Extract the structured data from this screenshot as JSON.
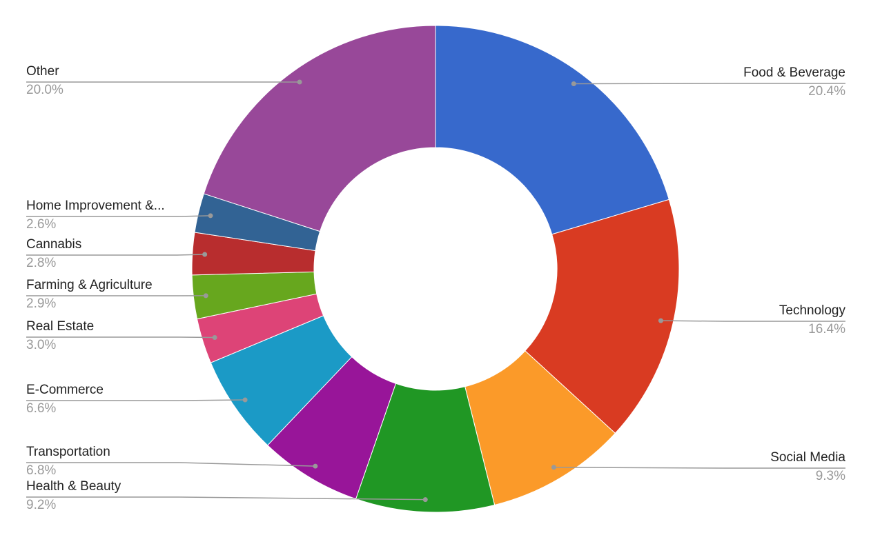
{
  "chart_data": {
    "type": "donut",
    "categories": [
      "Food & Beverage",
      "Technology",
      "Social Media",
      "Health & Beauty",
      "Transportation",
      "E-Commerce",
      "Real Estate",
      "Farming & Agriculture",
      "Cannabis",
      "Home Improvement &...",
      "Other"
    ],
    "values": [
      20.4,
      16.4,
      9.3,
      9.2,
      6.8,
      6.6,
      3.0,
      2.9,
      2.8,
      2.6,
      20.0
    ],
    "value_labels": [
      "20.4%",
      "16.4%",
      "9.3%",
      "9.2%",
      "6.8%",
      "6.6%",
      "3.0%",
      "2.9%",
      "2.8%",
      "2.6%",
      "20.0%"
    ],
    "colors": [
      "#3769cc",
      "#d93b22",
      "#fb9a29",
      "#209724",
      "#981599",
      "#1b9ac6",
      "#dd4477",
      "#67a71e",
      "#b82d2e",
      "#326394",
      "#984899"
    ]
  }
}
